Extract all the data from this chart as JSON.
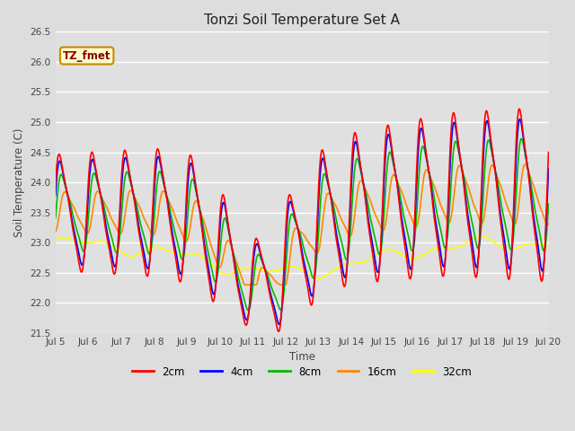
{
  "title": "Tonzi Soil Temperature Set A",
  "xlabel": "Time",
  "ylabel": "Soil Temperature (C)",
  "ylim": [
    21.5,
    26.5
  ],
  "annotation": "TZ_fmet",
  "line_colors": {
    "2cm": "#ff0000",
    "4cm": "#0000ff",
    "8cm": "#00bb00",
    "16cm": "#ff8800",
    "32cm": "#ffff00"
  },
  "legend_labels": [
    "2cm",
    "4cm",
    "8cm",
    "16cm",
    "32cm"
  ],
  "n_points": 720,
  "figsize": [
    6.4,
    4.8
  ],
  "dpi": 100
}
